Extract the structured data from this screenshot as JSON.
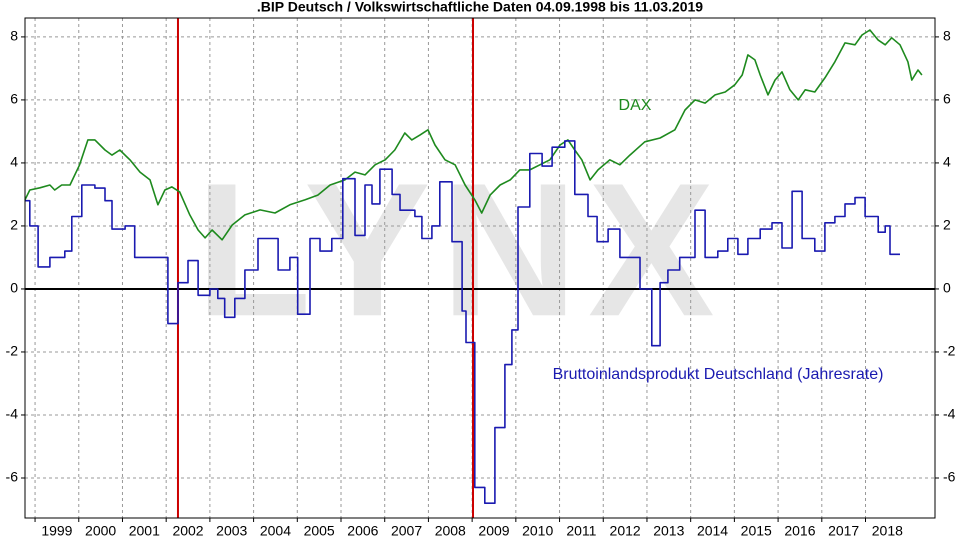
{
  "chart_data": {
    "type": "line",
    "title": ".BIP Deutsch / Volkswirtschaftliche Daten 04.09.1998 bis 11.03.2019",
    "watermark": "LYNX",
    "xlim": [
      1998.77,
      2019.59
    ],
    "ylim": [
      -7.27,
      8.6
    ],
    "xticks": [
      1999,
      2000,
      2001,
      2002,
      2003,
      2004,
      2005,
      2006,
      2007,
      2008,
      2009,
      2010,
      2011,
      2012,
      2013,
      2014,
      2015,
      2016,
      2017,
      2018
    ],
    "yticks": [
      -6,
      -4,
      -2,
      0,
      2,
      4,
      6,
      8
    ],
    "grid": true,
    "hline": 0,
    "vlines": [
      2002.27,
      2009.02
    ],
    "vline_color": "#cc0000",
    "series": [
      {
        "name": "DAX",
        "color": "#1e8a1e",
        "step": false,
        "x": [
          1998.77,
          1998.88,
          1999.11,
          1999.34,
          1999.45,
          1999.61,
          1999.8,
          2000.02,
          2000.21,
          2000.37,
          2000.6,
          2000.76,
          2000.94,
          2001.17,
          2001.4,
          2001.63,
          2001.81,
          2001.97,
          2002.13,
          2002.31,
          2002.54,
          2002.73,
          2002.89,
          2003.05,
          2003.28,
          2003.51,
          2003.8,
          2004.15,
          2004.49,
          2004.83,
          2005.18,
          2005.47,
          2005.75,
          2006.09,
          2006.32,
          2006.55,
          2006.78,
          2007.01,
          2007.23,
          2007.46,
          2007.62,
          2007.81,
          2007.99,
          2008.15,
          2008.38,
          2008.61,
          2008.84,
          2009.06,
          2009.22,
          2009.41,
          2009.64,
          2009.87,
          2010.09,
          2010.32,
          2010.55,
          2010.78,
          2011.01,
          2011.19,
          2011.35,
          2011.51,
          2011.7,
          2011.88,
          2012.15,
          2012.38,
          2012.61,
          2012.95,
          2013.3,
          2013.64,
          2013.87,
          2014.1,
          2014.33,
          2014.56,
          2014.79,
          2015.01,
          2015.18,
          2015.31,
          2015.47,
          2015.59,
          2015.77,
          2015.93,
          2016.09,
          2016.27,
          2016.46,
          2016.62,
          2016.84,
          2017.07,
          2017.3,
          2017.53,
          2017.76,
          2017.92,
          2018.1,
          2018.29,
          2018.45,
          2018.6,
          2018.79,
          2018.97,
          2019.06,
          2019.2,
          2019.29
        ],
        "values": [
          2.83,
          3.14,
          3.21,
          3.3,
          3.14,
          3.3,
          3.3,
          3.94,
          4.73,
          4.73,
          4.41,
          4.25,
          4.41,
          4.1,
          3.71,
          3.46,
          2.67,
          3.14,
          3.24,
          3.08,
          2.35,
          1.87,
          1.62,
          1.87,
          1.56,
          2.03,
          2.35,
          2.51,
          2.41,
          2.67,
          2.83,
          2.98,
          3.3,
          3.46,
          3.71,
          3.62,
          3.94,
          4.1,
          4.41,
          4.95,
          4.73,
          4.89,
          5.05,
          4.57,
          4.1,
          3.94,
          3.3,
          2.83,
          2.41,
          2.98,
          3.3,
          3.46,
          3.78,
          3.78,
          3.94,
          4.1,
          4.57,
          4.73,
          4.41,
          4.1,
          3.46,
          3.78,
          4.1,
          3.94,
          4.25,
          4.67,
          4.79,
          5.05,
          5.68,
          6.0,
          5.9,
          6.16,
          6.25,
          6.48,
          6.79,
          7.43,
          7.27,
          6.79,
          6.16,
          6.63,
          6.89,
          6.32,
          6.0,
          6.32,
          6.25,
          6.7,
          7.21,
          7.81,
          7.75,
          8.06,
          8.22,
          7.9,
          7.75,
          7.97,
          7.75,
          7.21,
          6.63,
          6.95,
          6.79
        ]
      },
      {
        "name": "Bruttoinlandsprodukt Deutschland (Jahresrate)",
        "color": "#1a1ab0",
        "step": true,
        "x": [
          1998.77,
          1998.88,
          1999.07,
          1999.34,
          1999.68,
          1999.84,
          2000.07,
          2000.37,
          2000.6,
          2000.76,
          2001.06,
          2001.28,
          2002.04,
          2002.27,
          2002.5,
          2002.73,
          2003.0,
          2003.18,
          2003.34,
          2003.57,
          2003.8,
          2004.1,
          2004.56,
          2004.83,
          2005.01,
          2005.29,
          2005.52,
          2005.79,
          2006.04,
          2006.32,
          2006.55,
          2006.71,
          2006.89,
          2007.17,
          2007.35,
          2007.69,
          2007.85,
          2008.08,
          2008.26,
          2008.54,
          2008.77,
          2008.86,
          2009.06,
          2009.29,
          2009.52,
          2009.75,
          2009.91,
          2010.05,
          2010.32,
          2010.6,
          2010.83,
          2011.12,
          2011.35,
          2011.65,
          2011.86,
          2012.11,
          2012.38,
          2012.84,
          2013.11,
          2013.3,
          2013.48,
          2013.75,
          2014.1,
          2014.33,
          2014.62,
          2014.85,
          2015.08,
          2015.31,
          2015.59,
          2015.86,
          2016.09,
          2016.32,
          2016.55,
          2016.84,
          2017.07,
          2017.3,
          2017.53,
          2017.76,
          2017.99,
          2018.29,
          2018.45,
          2018.56,
          2018.79
        ],
        "values": [
          2.8,
          2.0,
          0.7,
          1.0,
          1.2,
          2.3,
          3.3,
          3.2,
          2.8,
          1.9,
          2.0,
          1.0,
          -1.1,
          0.2,
          0.9,
          -0.2,
          0.0,
          -0.3,
          -0.9,
          -0.3,
          0.6,
          1.6,
          0.6,
          1.0,
          -0.8,
          1.6,
          1.2,
          1.6,
          3.5,
          1.7,
          3.3,
          2.7,
          3.8,
          3.0,
          2.5,
          2.3,
          1.6,
          2.0,
          3.4,
          1.5,
          -0.7,
          -1.7,
          -6.3,
          -6.8,
          -4.4,
          -2.4,
          -1.3,
          2.6,
          4.3,
          3.9,
          4.5,
          4.7,
          3.0,
          2.3,
          1.5,
          1.9,
          1.0,
          0.0,
          -1.8,
          0.2,
          0.6,
          1.0,
          2.5,
          1.0,
          1.2,
          1.6,
          1.1,
          1.6,
          1.9,
          2.1,
          1.3,
          3.1,
          1.6,
          1.2,
          2.1,
          2.3,
          2.7,
          2.9,
          2.3,
          1.8,
          2.0,
          1.1,
          1.1
        ]
      }
    ]
  }
}
